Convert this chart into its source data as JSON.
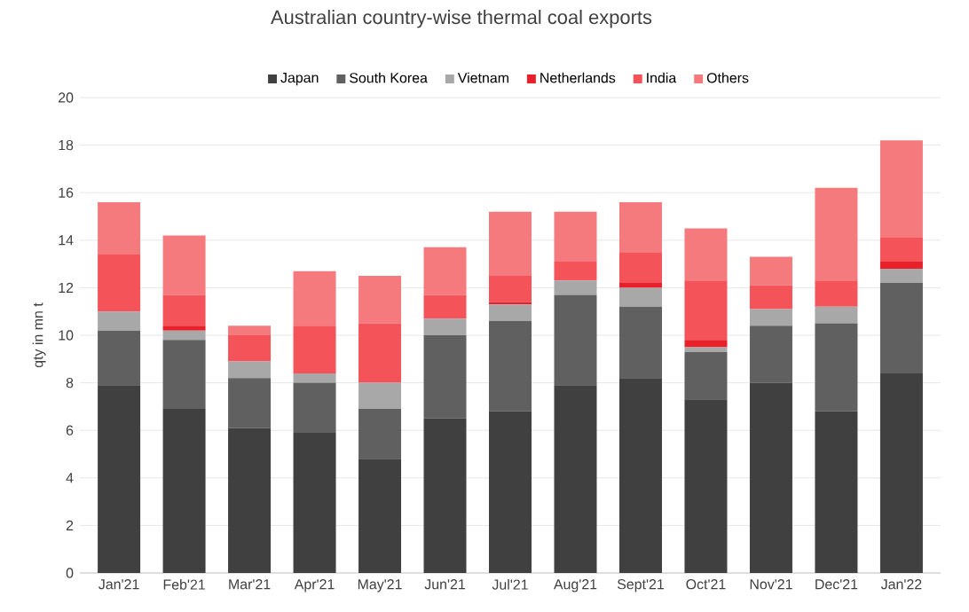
{
  "chart_data": {
    "type": "bar",
    "stacked": true,
    "title": "Australian country-wise thermal coal exports",
    "ylabel": "qty in mn t",
    "categories": [
      "Jan'21",
      "Feb'21",
      "Mar'21",
      "Apr'21",
      "May'21",
      "Jun'21",
      "Jul'21",
      "Aug'21",
      "Sept'21",
      "Oct'21",
      "Nov'21",
      "Dec'21",
      "Jan'22"
    ],
    "series": [
      {
        "name": "Japan",
        "color": "#404040",
        "values": [
          7.9,
          6.9,
          6.1,
          5.9,
          4.8,
          6.5,
          6.8,
          7.9,
          8.2,
          7.3,
          8.0,
          6.8,
          8.4
        ]
      },
      {
        "name": "South Korea",
        "color": "#606060",
        "values": [
          2.3,
          2.9,
          2.1,
          2.1,
          2.1,
          3.5,
          3.8,
          3.8,
          3.0,
          2.0,
          2.4,
          3.7,
          3.8
        ]
      },
      {
        "name": "Vietnam",
        "color": "#a8a8a8",
        "values": [
          0.8,
          0.4,
          0.7,
          0.4,
          1.1,
          0.7,
          0.7,
          0.6,
          0.8,
          0.2,
          0.7,
          0.7,
          0.6
        ]
      },
      {
        "name": "Netherlands",
        "color": "#e8202a",
        "values": [
          0,
          0.2,
          0,
          0,
          0,
          0,
          0.1,
          0,
          0.2,
          0.3,
          0,
          0,
          0.3
        ]
      },
      {
        "name": "India",
        "color": "#f4535a",
        "values": [
          2.4,
          1.3,
          1.1,
          2.0,
          2.5,
          1.0,
          1.1,
          0.8,
          1.3,
          2.5,
          1.0,
          1.1,
          1.0
        ]
      },
      {
        "name": "Others",
        "color": "#f47a7e",
        "values": [
          2.2,
          2.5,
          0.4,
          2.3,
          2.0,
          2.0,
          2.7,
          2.1,
          2.1,
          2.2,
          1.2,
          3.9,
          4.1
        ]
      }
    ],
    "ylim": [
      0,
      20
    ],
    "yticks": [
      0,
      2,
      4,
      6,
      8,
      10,
      12,
      14,
      16,
      18,
      20
    ],
    "grid": "y",
    "legend": "top"
  }
}
